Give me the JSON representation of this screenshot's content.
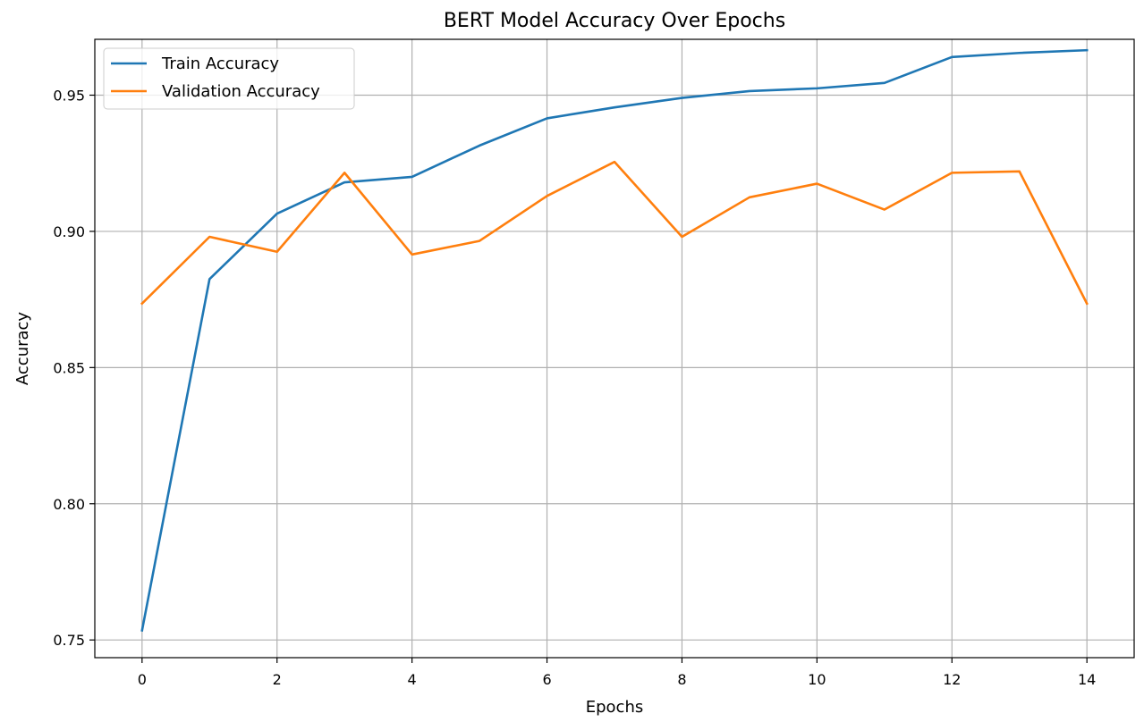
{
  "chart_data": {
    "type": "line",
    "title": "BERT Model Accuracy Over Epochs",
    "xlabel": "Epochs",
    "ylabel": "Accuracy",
    "x": [
      0,
      1,
      2,
      3,
      4,
      5,
      6,
      7,
      8,
      9,
      10,
      11,
      12,
      13,
      14
    ],
    "xlim": [
      -0.7,
      14.7
    ],
    "ylim": [
      0.7435,
      0.9705
    ],
    "xticks": [
      0,
      2,
      4,
      6,
      8,
      10,
      12,
      14
    ],
    "xtick_labels": [
      "0",
      "2",
      "4",
      "6",
      "8",
      "10",
      "12",
      "14"
    ],
    "yticks": [
      0.75,
      0.8,
      0.85,
      0.9,
      0.95
    ],
    "ytick_labels": [
      "0.75",
      "0.80",
      "0.85",
      "0.90",
      "0.95"
    ],
    "grid": true,
    "legend_position": "top-left",
    "series": [
      {
        "name": "Train Accuracy",
        "color": "#1f77b4",
        "values": [
          0.7535,
          0.8825,
          0.9065,
          0.918,
          0.92,
          0.9315,
          0.9415,
          0.9455,
          0.949,
          0.9515,
          0.9525,
          0.9545,
          0.964,
          0.9655,
          0.9665
        ]
      },
      {
        "name": "Validation Accuracy",
        "color": "#ff7f0e",
        "values": [
          0.8735,
          0.898,
          0.8925,
          0.9215,
          0.8915,
          0.8965,
          0.913,
          0.9255,
          0.898,
          0.9125,
          0.9175,
          0.908,
          0.9215,
          0.922,
          0.8735
        ]
      }
    ]
  }
}
